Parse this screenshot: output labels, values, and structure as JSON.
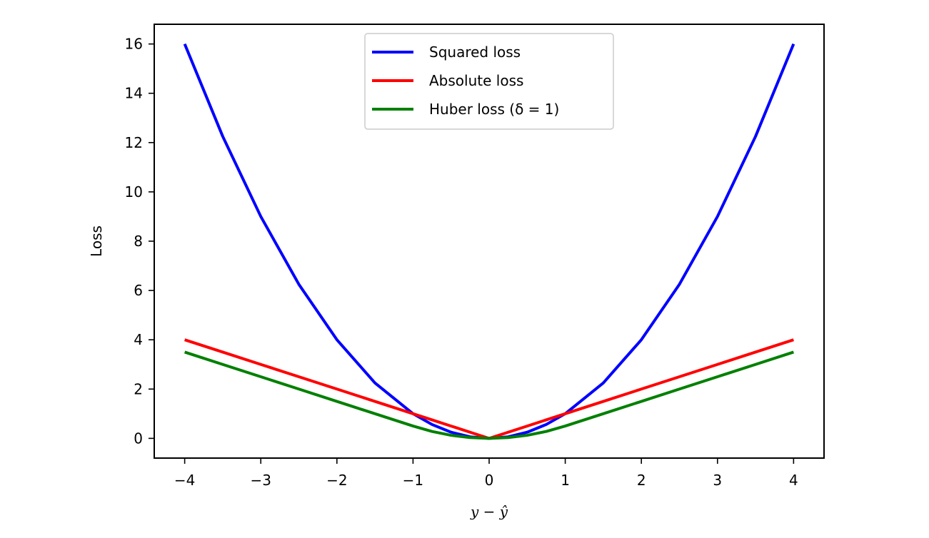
{
  "chart_data": {
    "type": "line",
    "title": "",
    "xlabel": "y − ŷ",
    "ylabel": "Loss",
    "xlim": [
      -4.4,
      4.4
    ],
    "ylim": [
      -0.8,
      16.8
    ],
    "xticks": [
      -4,
      -3,
      -2,
      -1,
      0,
      1,
      2,
      3,
      4
    ],
    "xtick_labels": [
      "−4",
      "−3",
      "−2",
      "−1",
      "0",
      "1",
      "2",
      "3",
      "4"
    ],
    "yticks": [
      0,
      2,
      4,
      6,
      8,
      10,
      12,
      14,
      16
    ],
    "ytick_labels": [
      "0",
      "2",
      "4",
      "6",
      "8",
      "10",
      "12",
      "14",
      "16"
    ],
    "grid": false,
    "legend_position": "top-center",
    "x": [
      -4,
      -3.5,
      -3,
      -2.5,
      -2,
      -1.5,
      -1,
      -0.75,
      -0.5,
      -0.25,
      0,
      0.25,
      0.5,
      0.75,
      1,
      1.5,
      2,
      2.5,
      3,
      3.5,
      4
    ],
    "series": [
      {
        "name": "Squared loss",
        "color": "#0000ff",
        "values": [
          16,
          12.25,
          9,
          6.25,
          4,
          2.25,
          1,
          0.5625,
          0.25,
          0.0625,
          0,
          0.0625,
          0.25,
          0.5625,
          1,
          2.25,
          4,
          6.25,
          9,
          12.25,
          16
        ]
      },
      {
        "name": "Absolute loss",
        "color": "#ff0000",
        "values": [
          4,
          3.5,
          3,
          2.5,
          2,
          1.5,
          1,
          0.75,
          0.5,
          0.25,
          0,
          0.25,
          0.5,
          0.75,
          1,
          1.5,
          2,
          2.5,
          3,
          3.5,
          4
        ]
      },
      {
        "name": "Huber loss (δ = 1)",
        "color": "#008000",
        "values": [
          3.5,
          3,
          2.5,
          2,
          1.5,
          1,
          0.5,
          0.28125,
          0.125,
          0.03125,
          0,
          0.03125,
          0.125,
          0.28125,
          0.5,
          1,
          1.5,
          2,
          2.5,
          3,
          3.5
        ]
      }
    ]
  }
}
